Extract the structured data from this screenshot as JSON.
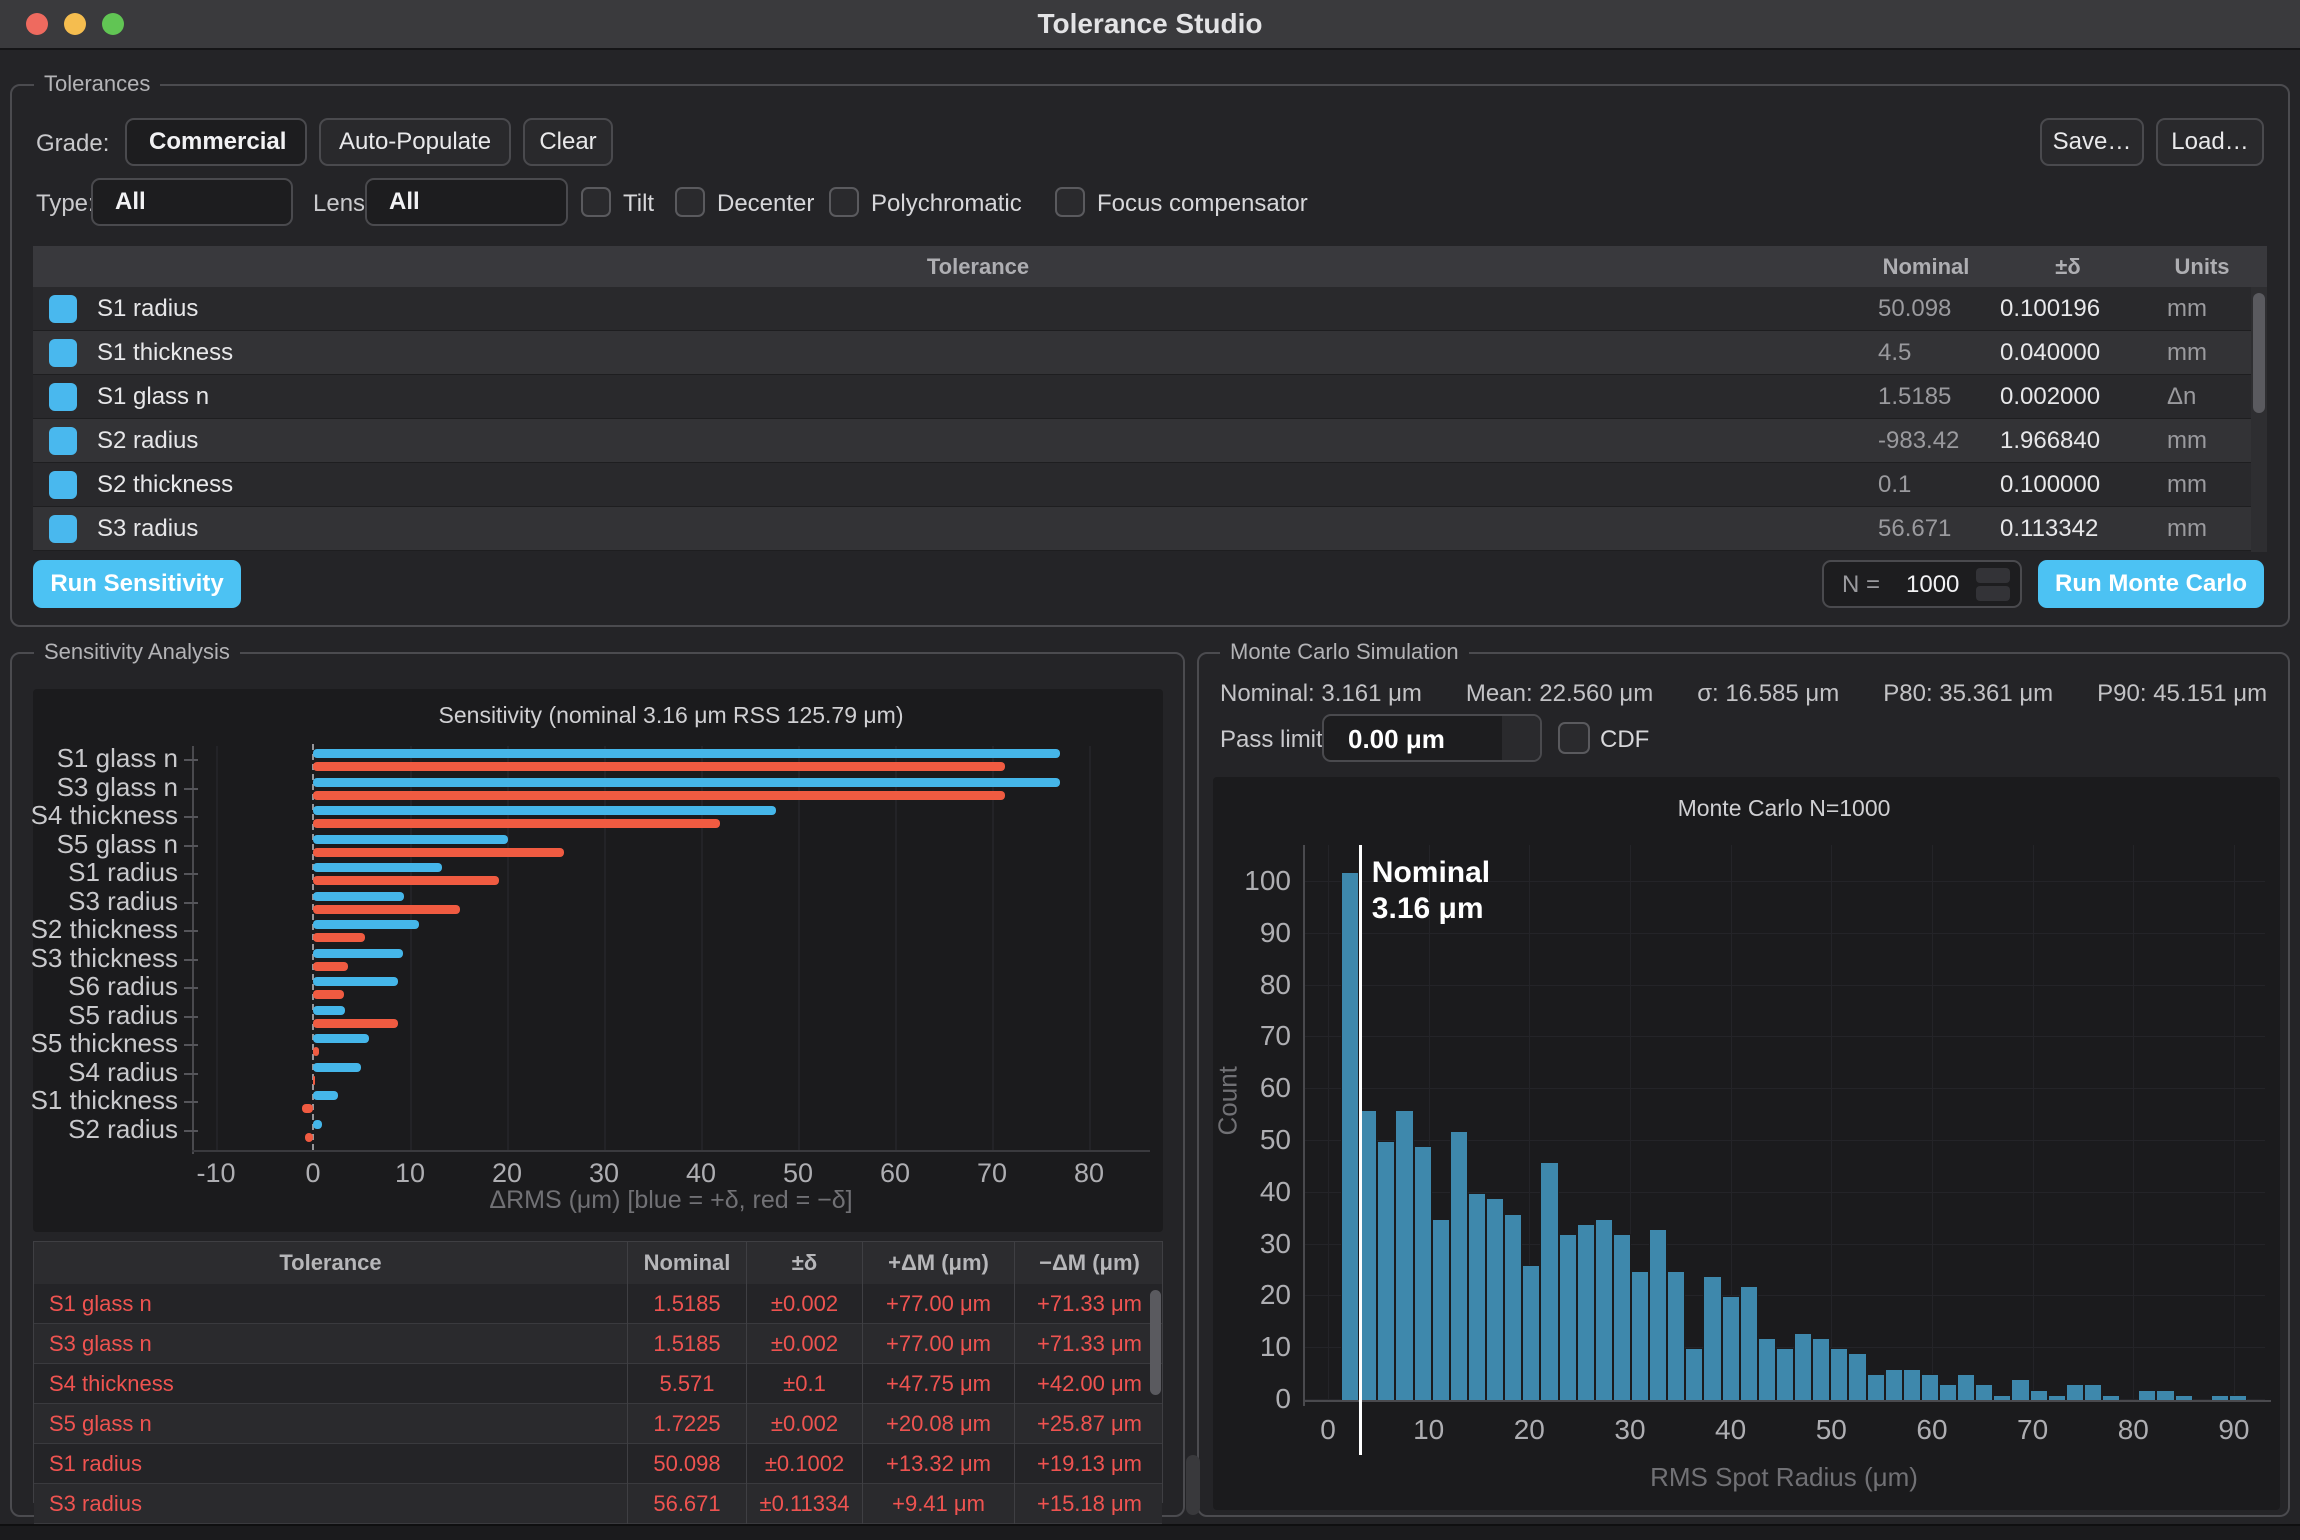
{
  "window": {
    "title": "Tolerance Studio"
  },
  "tolerances": {
    "group_label": "Tolerances",
    "grade_label": "Grade:",
    "grade_value": "Commercial",
    "auto_populate_label": "Auto-Populate",
    "clear_label": "Clear",
    "save_label": "Save…",
    "load_label": "Load…",
    "type_label": "Type:",
    "type_value": "All",
    "lens_label": "Lens:",
    "lens_value": "All",
    "checkboxes": [
      {
        "label": "Tilt",
        "checked": false
      },
      {
        "label": "Decenter",
        "checked": false
      },
      {
        "label": "Polychromatic",
        "checked": false
      },
      {
        "label": "Focus compensator",
        "checked": false
      }
    ],
    "table": {
      "headers": {
        "tolerance": "Tolerance",
        "nominal": "Nominal",
        "delta": "±δ",
        "units": "Units"
      },
      "rows": [
        {
          "checked": true,
          "name": "S1 radius",
          "nominal": "50.098",
          "delta": "0.100196",
          "units": "mm"
        },
        {
          "checked": true,
          "name": "S1 thickness",
          "nominal": "4.5",
          "delta": "0.040000",
          "units": "mm"
        },
        {
          "checked": true,
          "name": "S1 glass n",
          "nominal": "1.5185",
          "delta": "0.002000",
          "units": "Δn"
        },
        {
          "checked": true,
          "name": "S2 radius",
          "nominal": "-983.42",
          "delta": "1.966840",
          "units": "mm"
        },
        {
          "checked": true,
          "name": "S2 thickness",
          "nominal": "0.1",
          "delta": "0.100000",
          "units": "mm"
        },
        {
          "checked": true,
          "name": "S3 radius",
          "nominal": "56.671",
          "delta": "0.113342",
          "units": "mm"
        }
      ]
    },
    "run_sensitivity_label": "Run Sensitivity",
    "n_label": "N =",
    "n_value": "1000",
    "run_monte_carlo_label": "Run Monte Carlo"
  },
  "sensitivity": {
    "group_label": "Sensitivity Analysis",
    "table": {
      "headers": [
        "Tolerance",
        "Nominal",
        "±δ",
        "+ΔM (μm)",
        "−ΔM (μm)"
      ],
      "rows": [
        [
          "S1 glass n",
          "1.5185",
          "±0.002",
          "+77.00 μm",
          "+71.33 μm"
        ],
        [
          "S3 glass n",
          "1.5185",
          "±0.002",
          "+77.00 μm",
          "+71.33 μm"
        ],
        [
          "S4 thickness",
          "5.571",
          "±0.1",
          "+47.75 μm",
          "+42.00 μm"
        ],
        [
          "S5 glass n",
          "1.7225",
          "±0.002",
          "+20.08 μm",
          "+25.87 μm"
        ],
        [
          "S1 radius",
          "50.098",
          "±0.1002",
          "+13.32 μm",
          "+19.13 μm"
        ],
        [
          "S3 radius",
          "56.671",
          "±0.11334",
          "+9.41 μm",
          "+15.18 μm"
        ]
      ]
    }
  },
  "monte_carlo": {
    "group_label": "Monte Carlo Simulation",
    "stats": [
      "Nominal: 3.161 μm",
      "Mean: 22.560 μm",
      "σ: 16.585 μm",
      "P80: 35.361 μm",
      "P90: 45.151 μm"
    ],
    "pass_limit_label": "Pass limit:",
    "pass_limit_value": "0.00 μm",
    "cdf_label": "CDF"
  },
  "chart_data": [
    {
      "type": "bar",
      "orientation": "horizontal",
      "title": "Sensitivity (nominal 3.16 μm RSS 125.79 μm)",
      "categories": [
        "S1 glass n",
        "S3 glass n",
        "S4 thickness",
        "S5 glass n",
        "S1 radius",
        "S3 radius",
        "S2 thickness",
        "S3 thickness",
        "S6 radius",
        "S5 radius",
        "S5 thickness",
        "S4 radius",
        "S1 thickness",
        "S2 radius"
      ],
      "series": [
        {
          "name": "+δ",
          "color": "#45b6e9",
          "values": [
            77.0,
            77.0,
            47.75,
            20.08,
            13.32,
            9.41,
            10.9,
            9.3,
            8.8,
            3.3,
            5.8,
            4.9,
            2.6,
            0.9
          ]
        },
        {
          "name": "−δ",
          "color": "#f05b41",
          "values": [
            71.33,
            71.33,
            42.0,
            25.87,
            19.13,
            15.18,
            5.4,
            3.6,
            3.2,
            8.8,
            0.6,
            0.2,
            -1.1,
            -0.8
          ]
        }
      ],
      "xlabel": "ΔRMS (μm) [blue = +δ, red = −δ]",
      "xticks": [
        -10,
        0,
        10,
        20,
        30,
        40,
        50,
        60,
        70,
        80
      ],
      "xlim": [
        -12.5,
        86
      ],
      "zero_line": true,
      "grid": true,
      "legend_position": "none"
    },
    {
      "type": "histogram",
      "title": "Monte Carlo N=1000",
      "bar_color": "#3e88ac",
      "bin_start": 1.3,
      "bin_width": 1.8,
      "counts": [
        102,
        56,
        50,
        56,
        49,
        35,
        52,
        40,
        39,
        36,
        26,
        46,
        32,
        34,
        35,
        32,
        25,
        33,
        25,
        10,
        24,
        20,
        22,
        12,
        10,
        13,
        12,
        10,
        9,
        5,
        6,
        6,
        5,
        3,
        5,
        3,
        1,
        4,
        2,
        1,
        3,
        3,
        1,
        0,
        2,
        2,
        1,
        0,
        1,
        1
      ],
      "xlabel": "RMS Spot Radius (μm)",
      "ylabel": "Count",
      "xticks": [
        0,
        10,
        20,
        30,
        40,
        50,
        60,
        70,
        80,
        90
      ],
      "yticks": [
        0,
        10,
        20,
        30,
        40,
        50,
        60,
        70,
        80,
        90,
        100
      ],
      "xlim": [
        -2.5,
        93
      ],
      "ylim": [
        0,
        107
      ],
      "grid": true,
      "annotation": {
        "line_x": 3.16,
        "line_color": "#ffffff",
        "text_lines": [
          "Nominal",
          "3.16 μm"
        ]
      }
    }
  ]
}
